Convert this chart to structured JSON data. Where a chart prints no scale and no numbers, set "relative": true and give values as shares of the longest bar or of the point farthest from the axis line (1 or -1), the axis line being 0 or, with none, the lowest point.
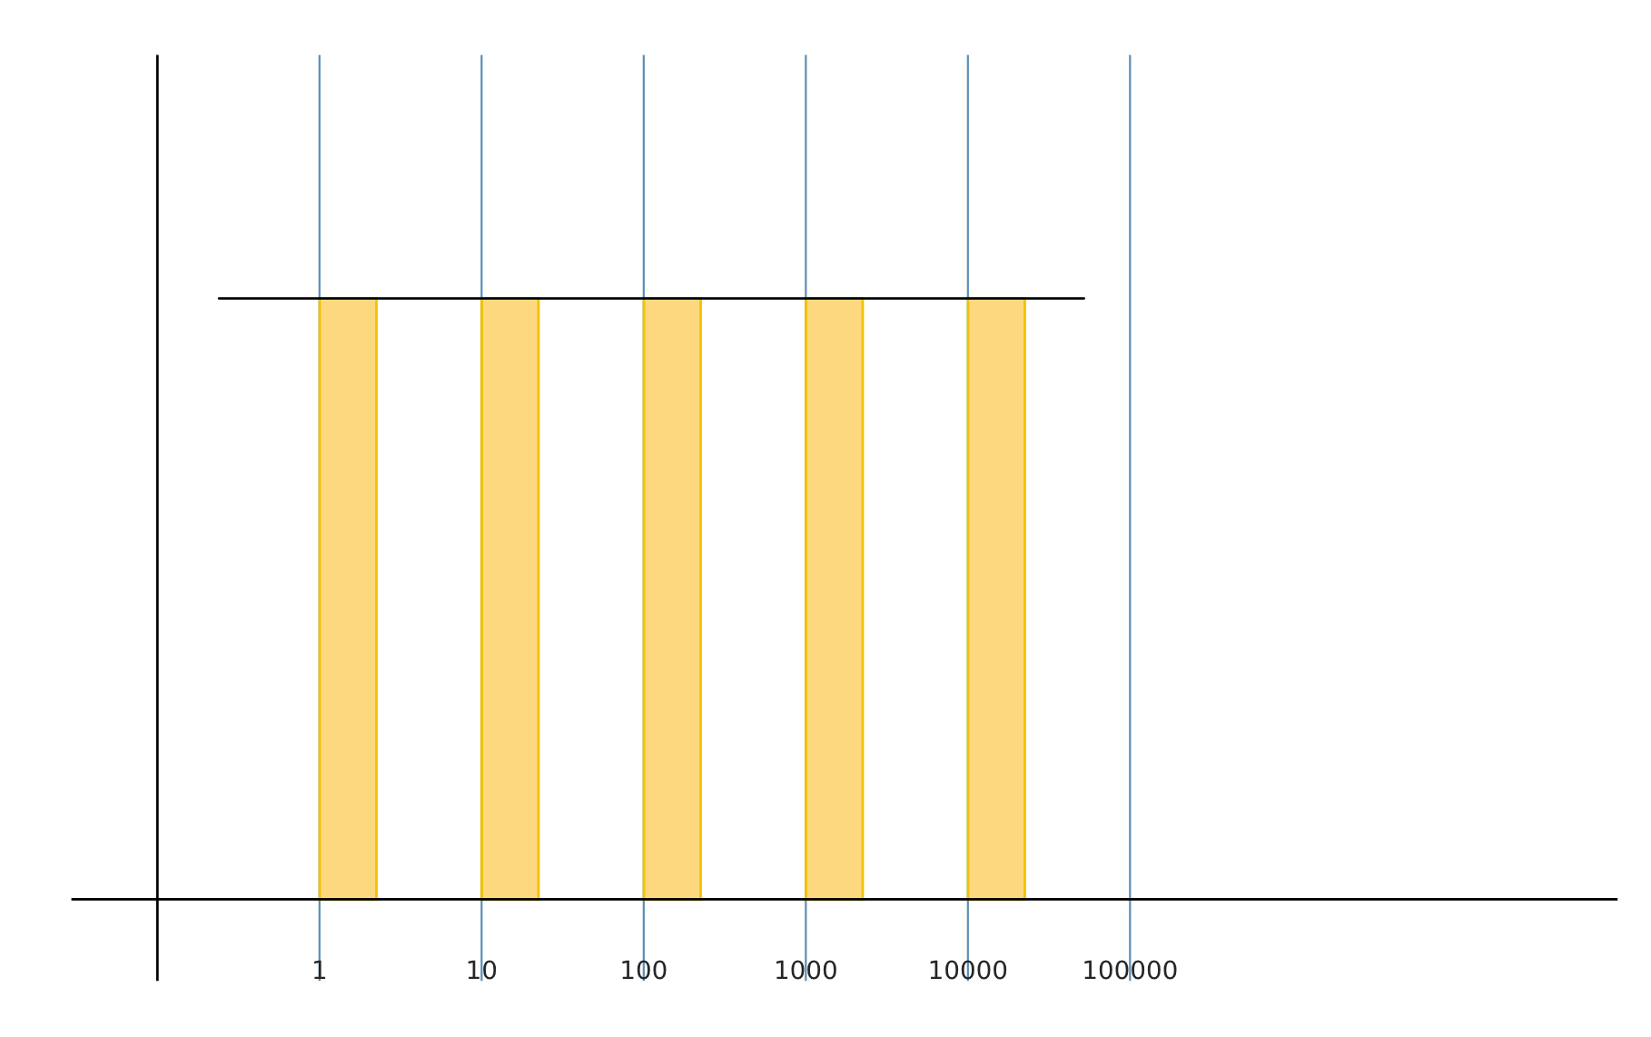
{
  "chart_data": {
    "type": "bar",
    "relative": true,
    "series": [
      {
        "x": [
          1.5,
          15,
          150,
          1500,
          15000
        ],
        "values": [
          1,
          1,
          1,
          1,
          1
        ],
        "color": "#fed87f"
      },
      {
        "type": "line",
        "x": [
          0.24,
          52000
        ],
        "values": [
          1,
          1
        ],
        "color": "#000000"
      }
    ],
    "log": "x",
    "xlim": [
      0.03,
      100000000
    ],
    "xticks": [
      1,
      10,
      100,
      1000,
      10000,
      100000
    ],
    "grid": "x",
    "ref_lines": [
      {
        "axis": "x",
        "value": 0.1,
        "color": "#000000"
      }
    ]
  }
}
